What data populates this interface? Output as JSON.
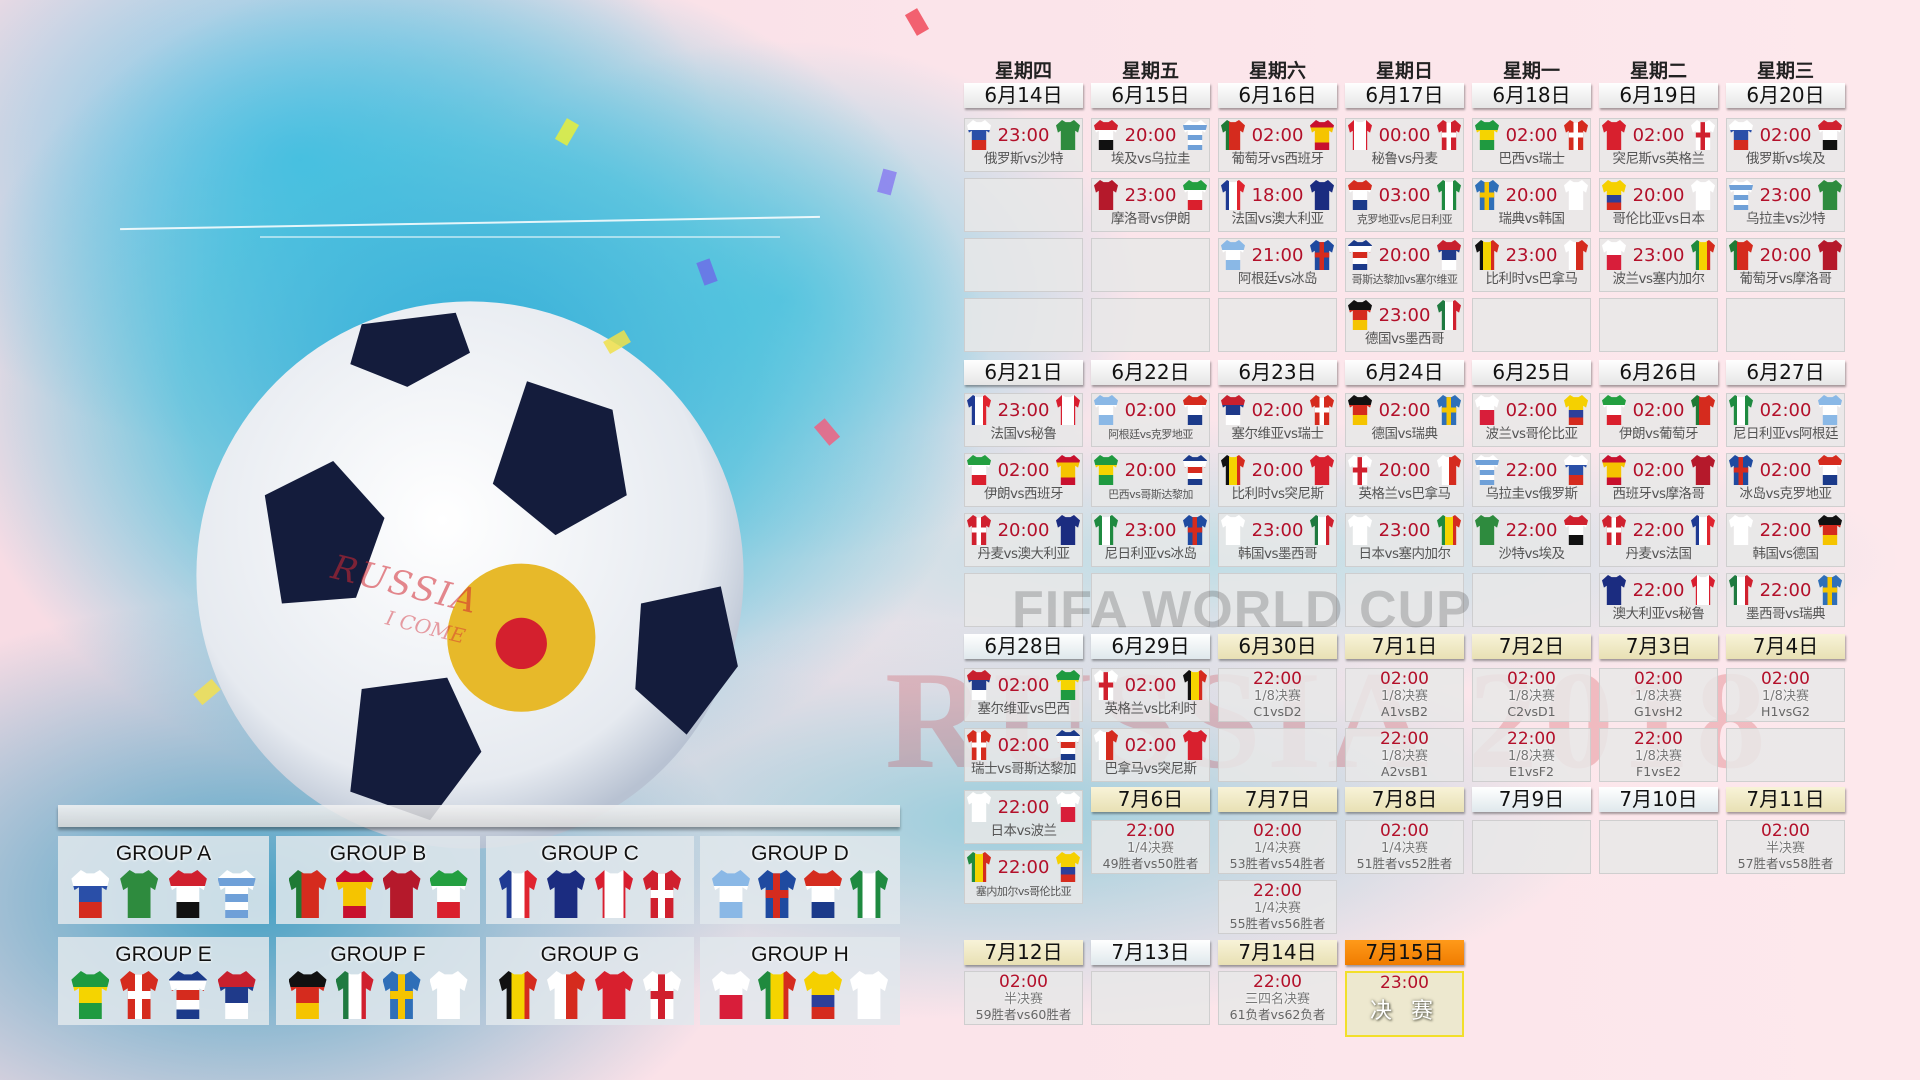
{
  "artwork": {
    "ball_text": "RUSSIA",
    "ball_text2": "I COME",
    "watermark_fifa": "FIFA WORLD CUP",
    "watermark_russia": "RUSSIA 2018"
  },
  "colors": {
    "time": "#b3102a",
    "header_cream": "#efe8c4",
    "header_final": "#f58a0a",
    "final_border": "#f2df2a"
  },
  "jerseys": {
    "rus": [
      "h",
      "#ffffff",
      "#2a4fa8",
      "#d52b1e"
    ],
    "ksa": [
      "h",
      "#2e8b3e"
    ],
    "egy": [
      "h",
      "#d0202e",
      "#ffffff",
      "#111111"
    ],
    "uru": [
      "h",
      "#ffffff",
      "#6fa0d8",
      "#ffffff",
      "#6fa0d8",
      "#ffffff",
      "#6fa0d8"
    ],
    "por": [
      "v",
      "#1f7a35",
      "#d52b1e",
      "#d52b1e"
    ],
    "esp": [
      "h",
      "#c8102e",
      "#f5c400",
      "#f5c400",
      "#c8102e"
    ],
    "mar": [
      "h",
      "#b5192b"
    ],
    "irn": [
      "h",
      "#239f40",
      "#ffffff",
      "#da1f2d"
    ],
    "fra": [
      "v",
      "#1f3a93",
      "#ffffff",
      "#e0242f"
    ],
    "aus": [
      "h",
      "#1b2c80"
    ],
    "per": [
      "v",
      "#d81e2f",
      "#ffffff",
      "#ffffff",
      "#d81e2f"
    ],
    "den": [
      "cross",
      "#d0202e",
      "#ffffff"
    ],
    "arg": [
      "h",
      "#8ab8e6",
      "#ffffff",
      "#8ab8e6"
    ],
    "isl": [
      "cross",
      "#1f4aa0",
      "#d52b1e"
    ],
    "cro": [
      "h",
      "#d52b1e",
      "#ffffff",
      "#1b3a8a"
    ],
    "nga": [
      "v",
      "#1f8a40",
      "#ffffff",
      "#1f8a40"
    ],
    "bra": [
      "h",
      "#1f9a40",
      "#f5d400",
      "#1f9a40"
    ],
    "sui": [
      "cross",
      "#d52b1e",
      "#ffffff"
    ],
    "crc": [
      "h",
      "#1b3a8a",
      "#ffffff",
      "#d52b1e",
      "#ffffff",
      "#1b3a8a"
    ],
    "srb": [
      "h",
      "#c8202e",
      "#1f3a8a",
      "#ffffff"
    ],
    "ger": [
      "h",
      "#111111",
      "#d52b1e",
      "#f5c400"
    ],
    "mex": [
      "v",
      "#1f7a40",
      "#ffffff",
      "#d0202e"
    ],
    "swe": [
      "cross",
      "#2f6fb8",
      "#f5c400"
    ],
    "kor": [
      "h",
      "#ffffff"
    ],
    "bel": [
      "v",
      "#111111",
      "#f5d400",
      "#d52b1e"
    ],
    "pan": [
      "v",
      "#ffffff",
      "#d52b1e"
    ],
    "tun": [
      "h",
      "#d8202e"
    ],
    "eng": [
      "cross",
      "#ffffff",
      "#d0202e"
    ],
    "pol": [
      "h",
      "#ffffff",
      "#d81e3a"
    ],
    "sen": [
      "v",
      "#1f8a3e",
      "#f5d400",
      "#d52b1e"
    ],
    "col": [
      "h",
      "#f5d000",
      "#f5d000",
      "#2c3f9a",
      "#d52b1e"
    ],
    "jpn": [
      "h",
      "#ffffff"
    ]
  },
  "weekdays": [
    "星期四",
    "星期五",
    "星期六",
    "星期日",
    "星期一",
    "星期二",
    "星期三"
  ],
  "weeks": [
    {
      "days": [
        {
          "date": "6月14日",
          "matches": [
            {
              "time": "23:00",
              "home": "rus",
              "away": "ksa",
              "label": "俄罗斯vs沙特"
            }
          ]
        },
        {
          "date": "6月15日",
          "matches": [
            {
              "time": "20:00",
              "home": "egy",
              "away": "uru",
              "label": "埃及vs乌拉圭"
            },
            {
              "time": "23:00",
              "home": "mar",
              "away": "irn",
              "label": "摩洛哥vs伊朗"
            }
          ]
        },
        {
          "date": "6月16日",
          "matches": [
            {
              "time": "02:00",
              "home": "por",
              "away": "esp",
              "label": "葡萄牙vs西班牙"
            },
            {
              "time": "18:00",
              "home": "fra",
              "away": "aus",
              "label": "法国vs澳大利亚"
            },
            {
              "time": "21:00",
              "home": "arg",
              "away": "isl",
              "label": "阿根廷vs冰岛"
            }
          ]
        },
        {
          "date": "6月17日",
          "matches": [
            {
              "time": "00:00",
              "home": "per",
              "away": "den",
              "label": "秘鲁vs丹麦"
            },
            {
              "time": "03:00",
              "home": "cro",
              "away": "nga",
              "label": "克罗地亚vs尼日利亚",
              "small": true
            },
            {
              "time": "20:00",
              "home": "crc",
              "away": "srb",
              "label": "哥斯达黎加vs塞尔维亚",
              "small": true
            },
            {
              "time": "23:00",
              "home": "ger",
              "away": "mex",
              "label": "德国vs墨西哥"
            }
          ]
        },
        {
          "date": "6月18日",
          "matches": [
            {
              "time": "02:00",
              "home": "bra",
              "away": "sui",
              "label": "巴西vs瑞士"
            },
            {
              "time": "20:00",
              "home": "swe",
              "away": "kor",
              "label": "瑞典vs韩国"
            },
            {
              "time": "23:00",
              "home": "bel",
              "away": "pan",
              "label": "比利时vs巴拿马"
            }
          ]
        },
        {
          "date": "6月19日",
          "matches": [
            {
              "time": "02:00",
              "home": "tun",
              "away": "eng",
              "label": "突尼斯vs英格兰"
            },
            {
              "time": "20:00",
              "home": "col",
              "away": "jpn",
              "label": "哥伦比亚vs日本"
            },
            {
              "time": "23:00",
              "home": "pol",
              "away": "sen",
              "label": "波兰vs塞内加尔"
            }
          ]
        },
        {
          "date": "6月20日",
          "matches": [
            {
              "time": "02:00",
              "home": "rus",
              "away": "egy",
              "label": "俄罗斯vs埃及"
            },
            {
              "time": "23:00",
              "home": "uru",
              "away": "ksa",
              "label": "乌拉圭vs沙特"
            },
            {
              "time": "20:00",
              "home": "por",
              "away": "mar",
              "label": "葡萄牙vs摩洛哥"
            }
          ]
        }
      ]
    },
    {
      "days": [
        {
          "date": "6月21日",
          "matches": [
            {
              "time": "23:00",
              "home": "fra",
              "away": "per",
              "label": "法国vs秘鲁"
            },
            {
              "time": "02:00",
              "home": "irn",
              "away": "esp",
              "label": "伊朗vs西班牙"
            },
            {
              "time": "20:00",
              "home": "den",
              "away": "aus",
              "label": "丹麦vs澳大利亚"
            }
          ]
        },
        {
          "date": "6月22日",
          "matches": [
            {
              "time": "02:00",
              "home": "arg",
              "away": "cro",
              "label": "阿根廷vs克罗地亚",
              "small": true
            },
            {
              "time": "20:00",
              "home": "bra",
              "away": "crc",
              "label": "巴西vs哥斯达黎加",
              "small": true
            },
            {
              "time": "23:00",
              "home": "nga",
              "away": "isl",
              "label": "尼日利亚vs冰岛"
            }
          ]
        },
        {
          "date": "6月23日",
          "matches": [
            {
              "time": "02:00",
              "home": "srb",
              "away": "sui",
              "label": "塞尔维亚vs瑞士"
            },
            {
              "time": "20:00",
              "home": "bel",
              "away": "tun",
              "label": "比利时vs突尼斯"
            },
            {
              "time": "23:00",
              "home": "kor",
              "away": "mex",
              "label": "韩国vs墨西哥"
            }
          ]
        },
        {
          "date": "6月24日",
          "matches": [
            {
              "time": "02:00",
              "home": "ger",
              "away": "swe",
              "label": "德国vs瑞典"
            },
            {
              "time": "20:00",
              "home": "eng",
              "away": "pan",
              "label": "英格兰vs巴拿马"
            },
            {
              "time": "23:00",
              "home": "jpn",
              "away": "sen",
              "label": "日本vs塞内加尔"
            }
          ]
        },
        {
          "date": "6月25日",
          "matches": [
            {
              "time": "02:00",
              "home": "pol",
              "away": "col",
              "label": "波兰vs哥伦比亚"
            },
            {
              "time": "22:00",
              "home": "uru",
              "away": "rus",
              "label": "乌拉圭vs俄罗斯"
            },
            {
              "time": "22:00",
              "home": "ksa",
              "away": "egy",
              "label": "沙特vs埃及"
            }
          ]
        },
        {
          "date": "6月26日",
          "matches": [
            {
              "time": "02:00",
              "home": "irn",
              "away": "por",
              "label": "伊朗vs葡萄牙"
            },
            {
              "time": "02:00",
              "home": "esp",
              "away": "mar",
              "label": "西班牙vs摩洛哥"
            },
            {
              "time": "22:00",
              "home": "den",
              "away": "fra",
              "label": "丹麦vs法国"
            },
            {
              "time": "22:00",
              "home": "aus",
              "away": "per",
              "label": "澳大利亚vs秘鲁"
            }
          ]
        },
        {
          "date": "6月27日",
          "matches": [
            {
              "time": "02:00",
              "home": "nga",
              "away": "arg",
              "label": "尼日利亚vs阿根廷"
            },
            {
              "time": "02:00",
              "home": "isl",
              "away": "cro",
              "label": "冰岛vs克罗地亚"
            },
            {
              "time": "22:00",
              "home": "kor",
              "away": "ger",
              "label": "韩国vs德国"
            },
            {
              "time": "22:00",
              "home": "mex",
              "away": "swe",
              "label": "墨西哥vs瑞典"
            }
          ]
        }
      ]
    },
    {
      "days": [
        {
          "date": "6月28日",
          "highlight": "light",
          "matches": [
            {
              "time": "02:00",
              "home": "srb",
              "away": "bra",
              "label": "塞尔维亚vs巴西"
            },
            {
              "time": "02:00",
              "home": "sui",
              "away": "crc",
              "label": "瑞士vs哥斯达黎加"
            },
            {
              "time": "22:00",
              "home": "jpn",
              "away": "pol",
              "label": "日本vs波兰"
            },
            {
              "time": "22:00",
              "home": "sen",
              "away": "col",
              "label": "塞内加尔vs哥伦比亚",
              "small": true
            }
          ]
        },
        {
          "date": "6月29日",
          "highlight": "light",
          "matches": [
            {
              "time": "02:00",
              "home": "eng",
              "away": "bel",
              "label": "英格兰vs比利时"
            },
            {
              "time": "02:00",
              "home": "pan",
              "away": "tun",
              "label": "巴拿马vs突尼斯"
            }
          ]
        },
        {
          "date": "6月30日",
          "highlight": "cream",
          "matches": [
            {
              "time": "22:00",
              "stage": "1/8决赛",
              "pair": "C1vsD2"
            }
          ]
        },
        {
          "date": "7月1日",
          "highlight": "cream",
          "matches": [
            {
              "time": "02:00",
              "stage": "1/8决赛",
              "pair": "A1vsB2"
            },
            {
              "time": "22:00",
              "stage": "1/8决赛",
              "pair": "A2vsB1"
            }
          ]
        },
        {
          "date": "7月2日",
          "highlight": "cream",
          "matches": [
            {
              "time": "02:00",
              "stage": "1/8决赛",
              "pair": "C2vsD1"
            },
            {
              "time": "22:00",
              "stage": "1/8决赛",
              "pair": "E1vsF2"
            }
          ]
        },
        {
          "date": "7月3日",
          "highlight": "cream",
          "matches": [
            {
              "time": "02:00",
              "stage": "1/8决赛",
              "pair": "G1vsH2"
            },
            {
              "time": "22:00",
              "stage": "1/8决赛",
              "pair": "F1vsE2"
            }
          ]
        },
        {
          "date": "7月4日",
          "highlight": "cream",
          "matches": [
            {
              "time": "02:00",
              "stage": "1/8决赛",
              "pair": "H1vsG2"
            }
          ]
        }
      ]
    },
    {
      "days": [
        {
          "date": "7月6日",
          "highlight": "cream",
          "matches": [
            {
              "time": "22:00",
              "stage": "1/4决赛",
              "pair": "49胜者vs50胜者"
            }
          ]
        },
        {
          "date": "7月7日",
          "highlight": "cream",
          "matches": [
            {
              "time": "02:00",
              "stage": "1/4决赛",
              "pair": "53胜者vs54胜者"
            },
            {
              "time": "22:00",
              "stage": "1/4决赛",
              "pair": "55胜者vs56胜者"
            }
          ]
        },
        {
          "date": "7月8日",
          "highlight": "cream",
          "matches": [
            {
              "time": "02:00",
              "stage": "1/4决赛",
              "pair": "51胜者vs52胜者"
            }
          ]
        },
        {
          "date": "7月9日",
          "highlight": "light",
          "matches": []
        },
        {
          "date": "7月10日",
          "highlight": "light",
          "matches": []
        },
        {
          "date": "7月11日",
          "highlight": "cream",
          "matches": [
            {
              "time": "02:00",
              "stage": "半决赛",
              "pair": "57胜者vs58胜者"
            }
          ]
        }
      ]
    },
    {
      "days": [
        {
          "date": "7月12日",
          "highlight": "cream",
          "matches": [
            {
              "time": "02:00",
              "stage": "半决赛",
              "pair": "59胜者vs60胜者"
            }
          ]
        },
        {
          "date": "7月13日",
          "highlight": "light",
          "matches": []
        },
        {
          "date": "7月14日",
          "highlight": "cream",
          "matches": [
            {
              "time": "22:00",
              "stage": "三四名决赛",
              "pair": "61负者vs62负者"
            }
          ]
        },
        {
          "date": "7月15日",
          "highlight": "final",
          "matches": [
            {
              "time": "23:00",
              "final": "决 赛"
            }
          ]
        }
      ]
    }
  ],
  "groups": [
    {
      "name": "GROUP A",
      "teams": [
        "rus",
        "ksa",
        "egy",
        "uru"
      ]
    },
    {
      "name": "GROUP B",
      "teams": [
        "por",
        "esp",
        "mar",
        "irn"
      ]
    },
    {
      "name": "GROUP C",
      "teams": [
        "fra",
        "aus",
        "per",
        "den"
      ]
    },
    {
      "name": "GROUP D",
      "teams": [
        "arg",
        "isl",
        "cro",
        "nga"
      ]
    },
    {
      "name": "GROUP E",
      "teams": [
        "bra",
        "sui",
        "crc",
        "srb"
      ]
    },
    {
      "name": "GROUP F",
      "teams": [
        "ger",
        "mex",
        "swe",
        "kor"
      ]
    },
    {
      "name": "GROUP G",
      "teams": [
        "bel",
        "pan",
        "tun",
        "eng"
      ]
    },
    {
      "name": "GROUP H",
      "teams": [
        "pol",
        "sen",
        "col",
        "jpn"
      ]
    }
  ]
}
